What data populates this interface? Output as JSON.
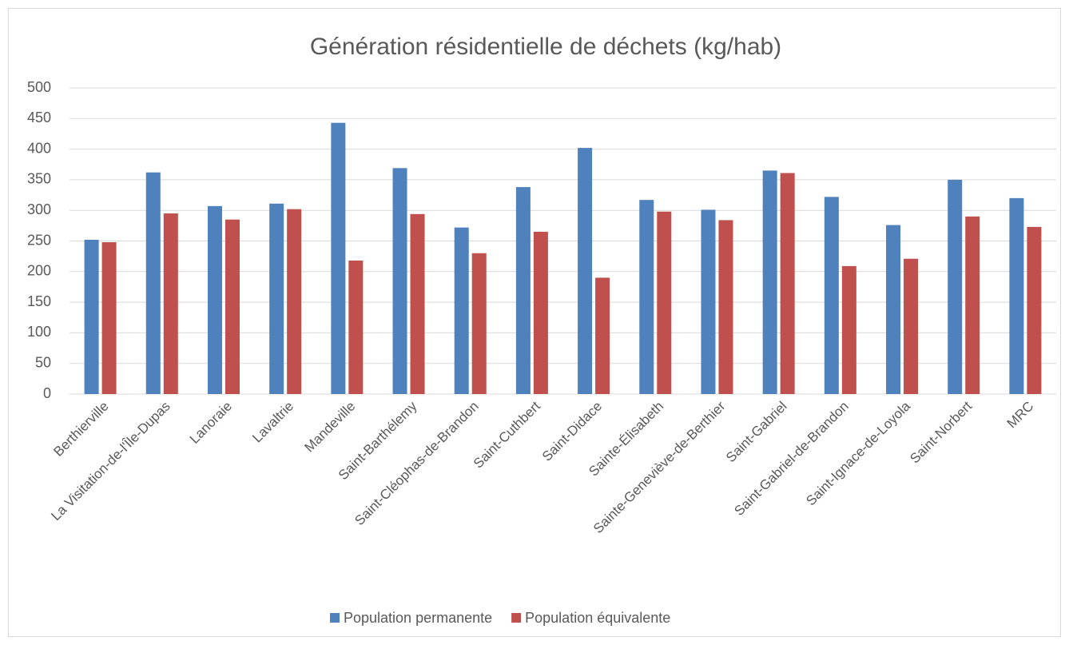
{
  "chart_data": {
    "type": "bar",
    "title": "Génération résidentielle de déchets (kg/hab)",
    "categories": [
      "Berthierville",
      "La Visitation-de-l'Île-Dupas",
      "Lanoraie",
      "Lavaltrie",
      "Mandeville",
      "Saint-Barthélemy",
      "Saint-Cléophas-de-Brandon",
      "Saint-Cuthbert",
      "Saint-Didace",
      "Sainte-Élisabeth",
      "Sainte-Geneviève-de-Berthier",
      "Saint-Gabriel",
      "Saint-Gabriel-de-Brandon",
      "Saint-Ignace-de-Loyola",
      "Saint-Norbert",
      "MRC"
    ],
    "series": [
      {
        "name": "Population permanente",
        "color": "#4f81bd",
        "values": [
          252,
          362,
          307,
          311,
          443,
          369,
          272,
          338,
          402,
          317,
          301,
          365,
          322,
          276,
          350,
          320
        ]
      },
      {
        "name": "Population équivalente",
        "color": "#c0504d",
        "values": [
          248,
          295,
          285,
          302,
          218,
          294,
          230,
          265,
          190,
          298,
          284,
          361,
          209,
          221,
          290,
          273
        ]
      }
    ],
    "ylim": [
      0,
      500
    ],
    "yticks": [
      0,
      50,
      100,
      150,
      200,
      250,
      300,
      350,
      400,
      450,
      500
    ],
    "grid": true,
    "legend": "bottom"
  }
}
